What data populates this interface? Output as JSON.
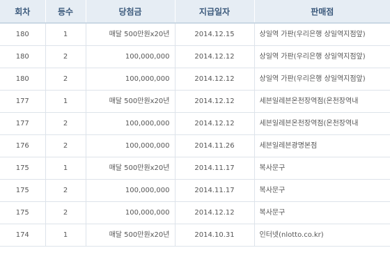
{
  "table": {
    "headers": {
      "round": "회차",
      "rank": "등수",
      "prize": "당첨금",
      "date": "지급일자",
      "store": "판매점"
    },
    "rows": [
      {
        "round": "180",
        "rank": "1",
        "prize": "매달 500만원x20년",
        "date": "2014.12.15",
        "store": "상일역 가판(우리은행 상일역지점앞)"
      },
      {
        "round": "180",
        "rank": "2",
        "prize": "100,000,000",
        "date": "2014.12.12",
        "store": "상일역 가판(우리은행 상일역지점앞)"
      },
      {
        "round": "180",
        "rank": "2",
        "prize": "100,000,000",
        "date": "2014.12.12",
        "store": "상일역 가판(우리은행 상일역지점앞)"
      },
      {
        "round": "177",
        "rank": "1",
        "prize": "매달 500만원x20년",
        "date": "2014.12.12",
        "store": "세븐일레븐온천장역점(온천장역내"
      },
      {
        "round": "177",
        "rank": "2",
        "prize": "100,000,000",
        "date": "2014.12.12",
        "store": "세븐일레븐온천장역점(온천장역내"
      },
      {
        "round": "176",
        "rank": "2",
        "prize": "100,000,000",
        "date": "2014.11.26",
        "store": "세븐일레븐광명본점"
      },
      {
        "round": "175",
        "rank": "1",
        "prize": "매달 500만원x20년",
        "date": "2014.11.17",
        "store": "복사문구"
      },
      {
        "round": "175",
        "rank": "2",
        "prize": "100,000,000",
        "date": "2014.11.17",
        "store": "복사문구"
      },
      {
        "round": "175",
        "rank": "2",
        "prize": "100,000,000",
        "date": "2014.12.12",
        "store": "복사문구"
      },
      {
        "round": "174",
        "rank": "1",
        "prize": "매달 500만원x20년",
        "date": "2014.10.31",
        "store": "인터넷(nlotto.co.kr)"
      }
    ]
  }
}
